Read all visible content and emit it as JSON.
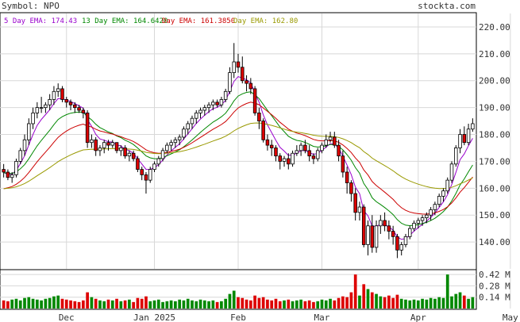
{
  "header": {
    "symbol_label": "Symbol: NPO",
    "site": "stockta.com"
  },
  "legend": [
    {
      "label": "5 Day EMA: 174.43",
      "color": "#9900cc"
    },
    {
      "label": "13 Day EMA: 164.6420",
      "color": "#008800"
    },
    {
      "label": "Day EMA: 161.3850",
      "color": "#cc0000"
    },
    {
      "label": "Day EMA: 162.80",
      "color": "#999900"
    }
  ],
  "colors": {
    "up": "#008800",
    "down": "#dd0000",
    "candle_outline": "#000000",
    "grid": "#d8d8d8"
  },
  "chart_data": {
    "type": "candlestick",
    "title": "Symbol: NPO",
    "price_axis": {
      "ticks": [
        140,
        150,
        160,
        170,
        180,
        190,
        200,
        210,
        220
      ],
      "tick_labels": [
        "140.00",
        "150.00",
        "160.00",
        "170.00",
        "180.00",
        "190.00",
        "200.00",
        "210.00",
        "220.00"
      ],
      "range": [
        130,
        225
      ]
    },
    "volume_axis": {
      "ticks": [
        0.14,
        0.28,
        0.42
      ],
      "tick_labels": [
        "0.14 M",
        "0.28 M",
        "0.42 M"
      ],
      "range": [
        0,
        0.47
      ]
    },
    "x_labels": [
      {
        "label": "Dec",
        "index": 15
      },
      {
        "label": "Jan 2025",
        "index": 36
      },
      {
        "label": "Feb",
        "index": 56
      },
      {
        "label": "Mar",
        "index": 76
      },
      {
        "label": "Apr",
        "index": 99
      },
      {
        "label": "May",
        "index": 121
      }
    ],
    "candles": [
      [
        167,
        169,
        164,
        166
      ],
      [
        166,
        167,
        163,
        164
      ],
      [
        164,
        166,
        162,
        165
      ],
      [
        165,
        171,
        164,
        170
      ],
      [
        170,
        175,
        169,
        174
      ],
      [
        174,
        180,
        172,
        178
      ],
      [
        178,
        186,
        176,
        184
      ],
      [
        184,
        190,
        182,
        188
      ],
      [
        188,
        192,
        186,
        190
      ],
      [
        190,
        194,
        188,
        190
      ],
      [
        190,
        192,
        188,
        191
      ],
      [
        191,
        195,
        189,
        193
      ],
      [
        193,
        198,
        191,
        196
      ],
      [
        196,
        199,
        194,
        197
      ],
      [
        197,
        198,
        192,
        193
      ],
      [
        193,
        194,
        190,
        192
      ],
      [
        192,
        193,
        189,
        191
      ],
      [
        191,
        192,
        188,
        190
      ],
      [
        190,
        191,
        188,
        189
      ],
      [
        189,
        190,
        186,
        188
      ],
      [
        188,
        189,
        175,
        177
      ],
      [
        177,
        180,
        175,
        178
      ],
      [
        178,
        179,
        172,
        174
      ],
      [
        174,
        176,
        172,
        175
      ],
      [
        175,
        178,
        173,
        177
      ],
      [
        177,
        178,
        174,
        176
      ],
      [
        176,
        178,
        175,
        177
      ],
      [
        177,
        177,
        173,
        174
      ],
      [
        174,
        176,
        172,
        175
      ],
      [
        175,
        176,
        171,
        172
      ],
      [
        172,
        174,
        170,
        173
      ],
      [
        173,
        174,
        170,
        171
      ],
      [
        171,
        172,
        166,
        167
      ],
      [
        167,
        168,
        163,
        165
      ],
      [
        165,
        166,
        158,
        163
      ],
      [
        163,
        168,
        162,
        167
      ],
      [
        167,
        170,
        166,
        169
      ],
      [
        169,
        172,
        168,
        171
      ],
      [
        171,
        175,
        170,
        174
      ],
      [
        174,
        177,
        173,
        176
      ],
      [
        176,
        178,
        174,
        177
      ],
      [
        177,
        179,
        175,
        178
      ],
      [
        178,
        180,
        176,
        179
      ],
      [
        179,
        183,
        178,
        182
      ],
      [
        182,
        185,
        180,
        184
      ],
      [
        184,
        187,
        182,
        186
      ],
      [
        186,
        189,
        184,
        188
      ],
      [
        188,
        190,
        186,
        189
      ],
      [
        189,
        191,
        187,
        190
      ],
      [
        190,
        192,
        188,
        191
      ],
      [
        191,
        193,
        189,
        192
      ],
      [
        192,
        193,
        190,
        191
      ],
      [
        191,
        194,
        190,
        193
      ],
      [
        193,
        197,
        192,
        196
      ],
      [
        196,
        205,
        195,
        203
      ],
      [
        203,
        214,
        201,
        207
      ],
      [
        207,
        210,
        203,
        205
      ],
      [
        205,
        209,
        199,
        200
      ],
      [
        200,
        202,
        196,
        199
      ],
      [
        199,
        201,
        195,
        197
      ],
      [
        197,
        198,
        187,
        188
      ],
      [
        188,
        190,
        182,
        185
      ],
      [
        185,
        186,
        177,
        178
      ],
      [
        178,
        180,
        174,
        176
      ],
      [
        176,
        178,
        172,
        175
      ],
      [
        175,
        176,
        170,
        172
      ],
      [
        172,
        173,
        167,
        170
      ],
      [
        170,
        172,
        168,
        171
      ],
      [
        171,
        173,
        167,
        169
      ],
      [
        169,
        174,
        168,
        173
      ],
      [
        173,
        176,
        172,
        174
      ],
      [
        174,
        177,
        172,
        176
      ],
      [
        176,
        178,
        173,
        174
      ],
      [
        174,
        176,
        170,
        172
      ],
      [
        172,
        173,
        169,
        171
      ],
      [
        171,
        175,
        170,
        174
      ],
      [
        174,
        177,
        173,
        176
      ],
      [
        176,
        180,
        175,
        178
      ],
      [
        178,
        181,
        177,
        179
      ],
      [
        179,
        181,
        175,
        176
      ],
      [
        176,
        178,
        170,
        172
      ],
      [
        172,
        174,
        164,
        166
      ],
      [
        166,
        168,
        158,
        162
      ],
      [
        162,
        163,
        155,
        158
      ],
      [
        158,
        160,
        148,
        151
      ],
      [
        151,
        155,
        148,
        153
      ],
      [
        153,
        154,
        138,
        139
      ],
      [
        139,
        148,
        135,
        146
      ],
      [
        146,
        150,
        136,
        138
      ],
      [
        138,
        148,
        136,
        146
      ],
      [
        146,
        150,
        143,
        148
      ],
      [
        148,
        151,
        144,
        146
      ],
      [
        146,
        148,
        141,
        144
      ],
      [
        144,
        146,
        139,
        142
      ],
      [
        142,
        143,
        134,
        137
      ],
      [
        137,
        140,
        135,
        139
      ],
      [
        139,
        143,
        138,
        142
      ],
      [
        142,
        146,
        141,
        145
      ],
      [
        145,
        148,
        144,
        147
      ],
      [
        147,
        149,
        145,
        148
      ],
      [
        148,
        150,
        146,
        149
      ],
      [
        149,
        151,
        147,
        150
      ],
      [
        150,
        153,
        148,
        152
      ],
      [
        152,
        155,
        150,
        154
      ],
      [
        154,
        158,
        153,
        157
      ],
      [
        157,
        160,
        155,
        159
      ],
      [
        159,
        164,
        158,
        163
      ],
      [
        163,
        170,
        162,
        169
      ],
      [
        169,
        176,
        168,
        175
      ],
      [
        175,
        182,
        173,
        180
      ],
      [
        180,
        183,
        176,
        177
      ],
      [
        177,
        184,
        176,
        182
      ],
      [
        182,
        186,
        181,
        184
      ]
    ],
    "volume": [
      0.1,
      0.09,
      0.11,
      0.12,
      0.1,
      0.13,
      0.14,
      0.12,
      0.11,
      0.1,
      0.12,
      0.13,
      0.15,
      0.16,
      0.12,
      0.11,
      0.1,
      0.09,
      0.08,
      0.1,
      0.2,
      0.14,
      0.12,
      0.1,
      0.09,
      0.11,
      0.1,
      0.12,
      0.09,
      0.1,
      0.11,
      0.08,
      0.13,
      0.12,
      0.15,
      0.09,
      0.1,
      0.11,
      0.08,
      0.09,
      0.1,
      0.09,
      0.11,
      0.1,
      0.12,
      0.1,
      0.09,
      0.11,
      0.1,
      0.09,
      0.1,
      0.08,
      0.09,
      0.12,
      0.18,
      0.22,
      0.14,
      0.13,
      0.11,
      0.1,
      0.16,
      0.13,
      0.14,
      0.11,
      0.1,
      0.12,
      0.09,
      0.1,
      0.11,
      0.09,
      0.1,
      0.11,
      0.09,
      0.1,
      0.08,
      0.09,
      0.11,
      0.1,
      0.12,
      0.1,
      0.13,
      0.15,
      0.14,
      0.2,
      0.42,
      0.16,
      0.3,
      0.24,
      0.2,
      0.18,
      0.15,
      0.14,
      0.16,
      0.13,
      0.17,
      0.12,
      0.11,
      0.1,
      0.11,
      0.1,
      0.12,
      0.11,
      0.13,
      0.12,
      0.14,
      0.13,
      0.42,
      0.15,
      0.18,
      0.2,
      0.16,
      0.12,
      0.14
    ],
    "ema_series": [
      {
        "name": "5 Day EMA",
        "period": 5,
        "color": "#9900cc"
      },
      {
        "name": "13 Day EMA",
        "period": 13,
        "color": "#008800"
      },
      {
        "name": "Day EMA",
        "period": 21,
        "color": "#cc0000"
      },
      {
        "name": "Day EMA",
        "period": 50,
        "color": "#999900"
      }
    ]
  }
}
